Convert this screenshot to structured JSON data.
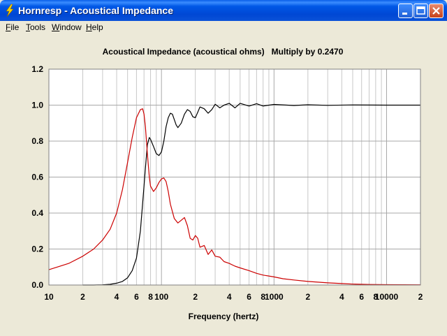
{
  "window": {
    "title": "Hornresp - Acoustical Impedance"
  },
  "menu": [
    {
      "label": "File",
      "accel": "F",
      "rest": "ile"
    },
    {
      "label": "Tools",
      "accel": "T",
      "rest": "ools"
    },
    {
      "label": "Window",
      "accel": "W",
      "rest": "indow"
    },
    {
      "label": "Help",
      "accel": "H",
      "rest": "elp"
    }
  ],
  "colors": {
    "series_black": "#000000",
    "series_red": "#CC0000",
    "grid": "#C8C8C8",
    "titlebar": "#0058E6"
  },
  "icons": {
    "app": "lightning-bolt-icon",
    "minimize": "minimize-icon",
    "maximize": "maximize-icon",
    "close": "close-icon"
  },
  "chart_data": {
    "type": "line",
    "title": "Acoustical Impedance (acoustical ohms)   Multiply by 0.2470",
    "xlabel": "Frequency (hertz)",
    "ylabel": "",
    "xscale": "log",
    "xlim": [
      10,
      20000
    ],
    "ylim": [
      0,
      1.2
    ],
    "grid": true,
    "x_tick_labels": [
      {
        "v": 10,
        "t": "10"
      },
      {
        "v": 20,
        "t": "2"
      },
      {
        "v": 40,
        "t": "4"
      },
      {
        "v": 60,
        "t": "6"
      },
      {
        "v": 80,
        "t": "8"
      },
      {
        "v": 100,
        "t": "100"
      },
      {
        "v": 200,
        "t": "2"
      },
      {
        "v": 400,
        "t": "4"
      },
      {
        "v": 600,
        "t": "6"
      },
      {
        "v": 800,
        "t": "8"
      },
      {
        "v": 1000,
        "t": "1000"
      },
      {
        "v": 2000,
        "t": "2"
      },
      {
        "v": 4000,
        "t": "4"
      },
      {
        "v": 6000,
        "t": "6"
      },
      {
        "v": 8000,
        "t": "8"
      },
      {
        "v": 10000,
        "t": "10000"
      },
      {
        "v": 20000,
        "t": "2"
      }
    ],
    "y_ticks": [
      {
        "v": 0,
        "t": "0.0"
      },
      {
        "v": 0.2,
        "t": "0.2"
      },
      {
        "v": 0.4,
        "t": "0.4"
      },
      {
        "v": 0.6,
        "t": "0.6"
      },
      {
        "v": 0.8,
        "t": "0.8"
      },
      {
        "v": 1.0,
        "t": "1.0"
      },
      {
        "v": 1.2,
        "t": "1.2"
      }
    ],
    "series": [
      {
        "color": "#000000",
        "x": [
          20,
          25,
          30,
          35,
          40,
          45,
          50,
          55,
          60,
          65,
          70,
          72,
          75,
          78,
          80,
          85,
          90,
          95,
          100,
          105,
          110,
          115,
          120,
          125,
          130,
          135,
          140,
          150,
          160,
          170,
          180,
          190,
          200,
          210,
          220,
          240,
          260,
          280,
          300,
          330,
          360,
          400,
          450,
          500,
          600,
          700,
          800,
          1000,
          1500,
          2000,
          3000,
          5000,
          10000,
          20000
        ],
        "y": [
          0,
          0,
          0.001,
          0.004,
          0.01,
          0.02,
          0.04,
          0.08,
          0.15,
          0.3,
          0.55,
          0.65,
          0.78,
          0.82,
          0.81,
          0.77,
          0.73,
          0.72,
          0.74,
          0.8,
          0.88,
          0.93,
          0.955,
          0.95,
          0.92,
          0.89,
          0.875,
          0.9,
          0.95,
          0.975,
          0.965,
          0.935,
          0.93,
          0.96,
          0.99,
          0.98,
          0.955,
          0.975,
          1.005,
          0.985,
          1.0,
          1.01,
          0.985,
          1.01,
          0.995,
          1.008,
          0.995,
          1.004,
          0.998,
          1.002,
          0.999,
          1.001,
          1.0,
          1.0
        ]
      },
      {
        "color": "#CC0000",
        "x": [
          10,
          15,
          20,
          25,
          30,
          35,
          40,
          45,
          50,
          55,
          60,
          65,
          68,
          70,
          72,
          75,
          78,
          80,
          85,
          90,
          95,
          100,
          105,
          110,
          115,
          120,
          130,
          140,
          150,
          160,
          170,
          180,
          190,
          200,
          210,
          220,
          240,
          260,
          280,
          300,
          330,
          360,
          400,
          450,
          500,
          600,
          700,
          800,
          1000,
          1200,
          1500,
          2000,
          3000,
          4000,
          5000,
          7000,
          10000,
          20000
        ],
        "y": [
          0.085,
          0.12,
          0.16,
          0.2,
          0.25,
          0.31,
          0.4,
          0.53,
          0.68,
          0.82,
          0.93,
          0.975,
          0.98,
          0.95,
          0.88,
          0.73,
          0.6,
          0.55,
          0.52,
          0.54,
          0.57,
          0.59,
          0.595,
          0.575,
          0.52,
          0.45,
          0.37,
          0.345,
          0.36,
          0.375,
          0.33,
          0.26,
          0.25,
          0.275,
          0.26,
          0.21,
          0.22,
          0.17,
          0.195,
          0.16,
          0.155,
          0.13,
          0.12,
          0.105,
          0.095,
          0.08,
          0.065,
          0.055,
          0.045,
          0.035,
          0.028,
          0.02,
          0.012,
          0.008,
          0.005,
          0.003,
          0.002,
          0.001
        ]
      }
    ]
  }
}
